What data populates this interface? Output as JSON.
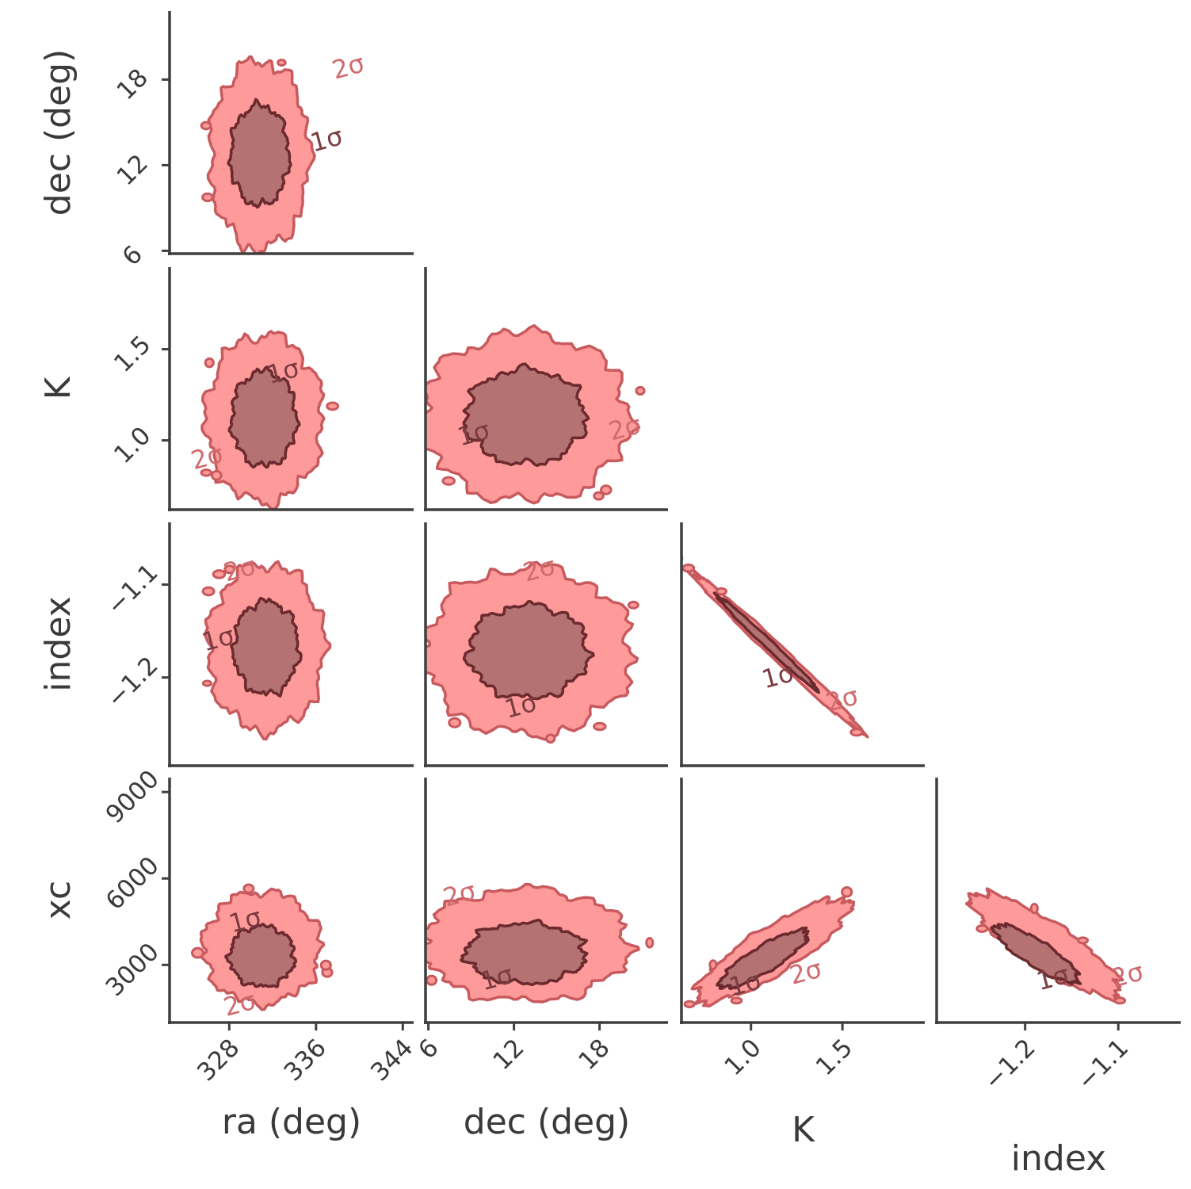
{
  "colors": {
    "axis": "#3f3f3f",
    "text": "#3a3a3a",
    "fill_2sigma": "#ff9a9a",
    "line_2sigma": "#c85a5e",
    "fill_1sigma": "#b47272",
    "line_1sigma": "#6b2a2e",
    "label_2sigma": "#d06a6e",
    "label_1sigma": "#7a3c40"
  },
  "chart_data": {
    "type": "corner",
    "description_type": "contour",
    "params": [
      {
        "key": "ra",
        "label": "ra (deg)",
        "range": [
          322.5,
          345
        ],
        "ticks": [
          328,
          336,
          344
        ]
      },
      {
        "key": "dec",
        "label": "dec (deg)",
        "range": [
          5.8,
          22.8
        ],
        "ticks": [
          6,
          12,
          18
        ]
      },
      {
        "key": "K",
        "label": "K",
        "range": [
          0.62,
          1.95
        ],
        "ticks": [
          1.0,
          1.5
        ]
      },
      {
        "key": "index",
        "label": "index",
        "range": [
          -1.295,
          -1.033
        ],
        "ticks": [
          -1.2,
          -1.1
        ]
      },
      {
        "key": "xc",
        "label": "xc",
        "range": [
          1000,
          9500
        ],
        "ticks": [
          3000,
          6000,
          9000
        ]
      }
    ],
    "contour_levels": [
      "1σ",
      "2σ"
    ],
    "grid": false,
    "panels": [
      {
        "x": "ra",
        "y": "dec",
        "sigma1": {
          "center": [
            330.8,
            12.7
          ],
          "sx": 2.7,
          "sy": 3.5,
          "rho": 0.0
        },
        "sigma2": {
          "center": [
            330.8,
            12.7
          ],
          "sx": 4.6,
          "sy": 6.6,
          "rho": 0.0
        },
        "labels": [
          {
            "text": "1σ",
            "at": [
              337.0,
              13.7
            ],
            "level": 1
          },
          {
            "text": "2σ",
            "at": [
              339.0,
              18.8
            ],
            "level": 2
          }
        ]
      },
      {
        "x": "ra",
        "y": "K",
        "sigma1": {
          "center": [
            331.2,
            1.12
          ],
          "sx": 3.0,
          "sy": 0.26,
          "rho": 0.0
        },
        "sigma2": {
          "center": [
            331.2,
            1.12
          ],
          "sx": 5.4,
          "sy": 0.46,
          "rho": 0.0
        },
        "labels": [
          {
            "text": "1σ",
            "at": [
              333.0,
              1.37
            ],
            "level": 1
          },
          {
            "text": "2σ",
            "at": [
              326.0,
              0.9
            ],
            "level": 2
          }
        ]
      },
      {
        "x": "dec",
        "y": "K",
        "sigma1": {
          "center": [
            12.8,
            1.13
          ],
          "sx": 4.2,
          "sy": 0.26,
          "rho": 0.0
        },
        "sigma2": {
          "center": [
            12.8,
            1.13
          ],
          "sx": 7.3,
          "sy": 0.46,
          "rho": 0.0
        },
        "labels": [
          {
            "text": "1σ",
            "at": [
              9.2,
              1.03
            ],
            "level": 1
          },
          {
            "text": "2σ",
            "at": [
              19.8,
              1.06
            ],
            "level": 2
          }
        ]
      },
      {
        "x": "ra",
        "y": "index",
        "sigma1": {
          "center": [
            331.4,
            -1.168
          ],
          "sx": 3.0,
          "sy": 0.05,
          "rho": 0.0
        },
        "sigma2": {
          "center": [
            331.4,
            -1.168
          ],
          "sx": 5.4,
          "sy": 0.09,
          "rho": 0.0
        },
        "labels": [
          {
            "text": "1σ",
            "at": [
              327.0,
              -1.16
            ],
            "level": 1
          },
          {
            "text": "2σ",
            "at": [
              329.0,
              -1.085
            ],
            "level": 2
          }
        ]
      },
      {
        "x": "dec",
        "y": "index",
        "sigma1": {
          "center": [
            13.0,
            -1.172
          ],
          "sx": 4.2,
          "sy": 0.05,
          "rho": 0.0
        },
        "sigma2": {
          "center": [
            13.0,
            -1.172
          ],
          "sx": 7.3,
          "sy": 0.09,
          "rho": 0.0
        },
        "labels": [
          {
            "text": "1σ",
            "at": [
              12.5,
              -1.232
            ],
            "level": 1
          },
          {
            "text": "2σ",
            "at": [
              13.8,
              -1.085
            ],
            "level": 2
          }
        ]
      },
      {
        "x": "K",
        "y": "index",
        "sigma1": {
          "center": [
            1.09,
            -1.163
          ],
          "sx": 0.27,
          "sy": 0.05,
          "rho": -0.992
        },
        "sigma2": {
          "center": [
            1.14,
            -1.172
          ],
          "sx": 0.46,
          "sy": 0.085,
          "rho": -0.992
        },
        "labels": [
          {
            "text": "1σ",
            "at": [
              1.15,
              -1.2
            ],
            "level": 1
          },
          {
            "text": "2σ",
            "at": [
              1.5,
              -1.225
            ],
            "level": 2
          }
        ]
      },
      {
        "x": "ra",
        "y": "xc",
        "sigma1": {
          "center": [
            331.0,
            3300
          ],
          "sx": 3.0,
          "sy": 1050,
          "rho": 0.0
        },
        "sigma2": {
          "center": [
            331.0,
            3600
          ],
          "sx": 5.4,
          "sy": 1950,
          "rho": 0.0
        },
        "labels": [
          {
            "text": "1σ",
            "at": [
              329.5,
              4500
            ],
            "level": 1
          },
          {
            "text": "2σ",
            "at": [
              329.0,
              1600
            ],
            "level": 2
          }
        ]
      },
      {
        "x": "dec",
        "y": "xc",
        "sigma1": {
          "center": [
            12.8,
            3400
          ],
          "sx": 4.2,
          "sy": 1050,
          "rho": 0.0
        },
        "sigma2": {
          "center": [
            12.8,
            3700
          ],
          "sx": 7.3,
          "sy": 1950,
          "rho": 0.0
        },
        "labels": [
          {
            "text": "1σ",
            "at": [
              10.8,
              2500
            ],
            "level": 1
          },
          {
            "text": "2σ",
            "at": [
              8.2,
              5400
            ],
            "level": 2
          }
        ]
      },
      {
        "x": "K",
        "y": "xc",
        "sigma1": {
          "center": [
            1.07,
            3200
          ],
          "sx": 0.24,
          "sy": 1000,
          "rho": 0.85
        },
        "sigma2": {
          "center": [
            1.12,
            3500
          ],
          "sx": 0.42,
          "sy": 1800,
          "rho": 0.85
        },
        "labels": [
          {
            "text": "1σ",
            "at": [
              0.97,
              2300
            ],
            "level": 1
          },
          {
            "text": "2σ",
            "at": [
              1.3,
              2700
            ],
            "level": 2
          }
        ]
      },
      {
        "x": "index",
        "y": "xc",
        "sigma1": {
          "center": [
            -1.188,
            3400
          ],
          "sx": 0.045,
          "sy": 1000,
          "rho": -0.85
        },
        "sigma2": {
          "center": [
            -1.178,
            3700
          ],
          "sx": 0.08,
          "sy": 1800,
          "rho": -0.85
        },
        "labels": [
          {
            "text": "1σ",
            "at": [
              -1.17,
              2500
            ],
            "level": 1
          },
          {
            "text": "2σ",
            "at": [
              -1.09,
              2600
            ],
            "level": 2
          }
        ]
      }
    ]
  }
}
